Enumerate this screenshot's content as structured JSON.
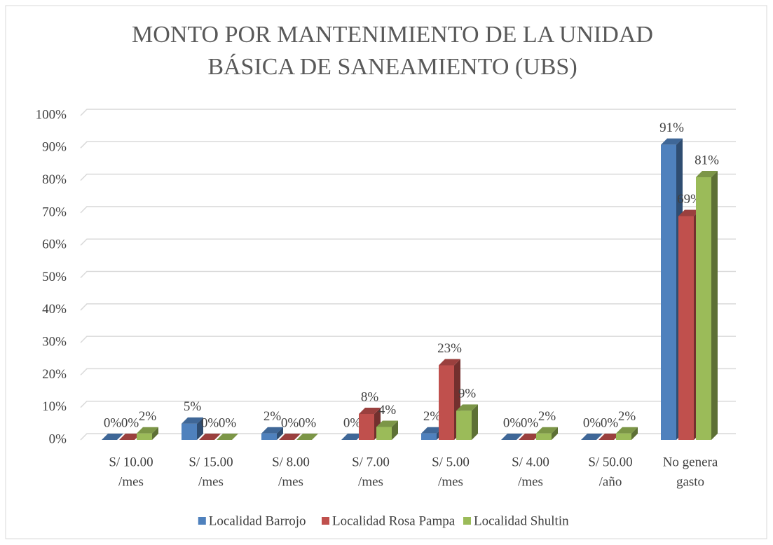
{
  "chart_data": {
    "type": "bar3d",
    "title": [
      "MONTO POR MANTENIMIENTO DE LA UNIDAD",
      "BÁSICA DE SANEAMIENTO (UBS)"
    ],
    "categories": [
      [
        "S/ 10.00",
        "/mes"
      ],
      [
        "S/ 15.00",
        "/mes"
      ],
      [
        "S/ 8.00",
        "/mes"
      ],
      [
        "S/ 7.00",
        "/mes"
      ],
      [
        "S/ 5.00",
        "/mes"
      ],
      [
        "S/ 4.00",
        "/mes"
      ],
      [
        "S/ 50.00",
        "/año"
      ],
      [
        "No genera",
        "gasto"
      ]
    ],
    "series": [
      {
        "name": "Localidad Barrojo",
        "color": "#4f81bd",
        "values": [
          0,
          5,
          2,
          0,
          2,
          0,
          0,
          91
        ],
        "value_labels": [
          "0%",
          "5%",
          "2%",
          "0%",
          "2%",
          "0%",
          "0%",
          "91%"
        ]
      },
      {
        "name": "Localidad Rosa Pampa",
        "color": "#c0504d",
        "values": [
          0,
          0,
          0,
          8,
          23,
          0,
          0,
          69
        ],
        "value_labels": [
          "0%",
          "0%",
          "0%",
          "8%",
          "23%",
          "0%",
          "0%",
          "69%"
        ]
      },
      {
        "name": "Localidad Shultin",
        "color": "#9bbb59",
        "values": [
          2,
          0,
          0,
          4,
          9,
          2,
          2,
          81
        ],
        "value_labels": [
          "2%",
          "0%",
          "0%",
          "4%",
          "9%",
          "2%",
          "2%",
          "81%"
        ]
      }
    ],
    "ylim": [
      0,
      100
    ],
    "yticks": [
      {
        "value": 0,
        "label": "0%"
      },
      {
        "value": 10,
        "label": "10%"
      },
      {
        "value": 20,
        "label": "20%"
      },
      {
        "value": 30,
        "label": "30%"
      },
      {
        "value": 40,
        "label": "40%"
      },
      {
        "value": 50,
        "label": "50%"
      },
      {
        "value": 60,
        "label": "60%"
      },
      {
        "value": 70,
        "label": "70%"
      },
      {
        "value": 80,
        "label": "80%"
      },
      {
        "value": 90,
        "label": "90%"
      },
      {
        "value": 100,
        "label": "100%"
      }
    ],
    "grid": true,
    "legend": "bottom"
  }
}
